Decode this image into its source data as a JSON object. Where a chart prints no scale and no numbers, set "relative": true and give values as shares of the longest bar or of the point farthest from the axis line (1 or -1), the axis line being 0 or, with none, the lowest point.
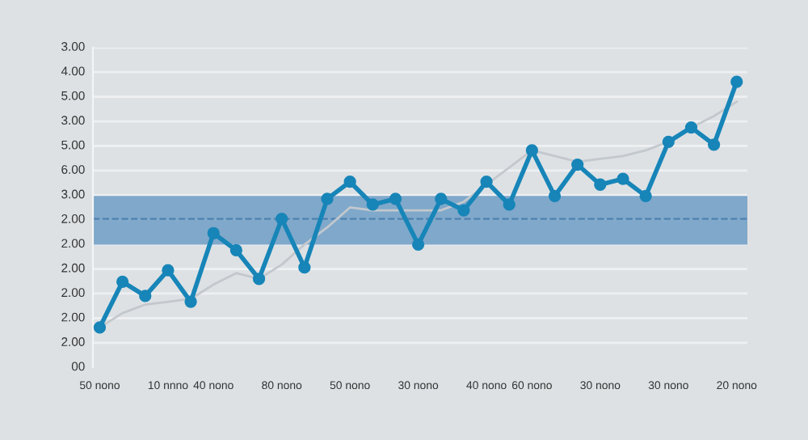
{
  "chart_data": {
    "type": "line",
    "relative": true,
    "categories": [
      "50 nono",
      null,
      null,
      "10 nnno",
      null,
      "40 nono",
      null,
      null,
      "80 nono",
      null,
      null,
      "50 nono",
      null,
      null,
      "30 nono",
      null,
      null,
      "40 nono",
      null,
      "60 nono",
      null,
      null,
      "30 nono",
      null,
      null,
      "30 nono",
      null,
      null,
      "20 nono"
    ],
    "series": [
      {
        "color": "#c3c8cd",
        "marker": "none",
        "values": [
          0.14,
          0.19,
          0.22,
          0.23,
          0.24,
          0.29,
          0.33,
          0.31,
          0.36,
          0.43,
          0.49,
          0.56,
          0.55,
          0.55,
          0.55,
          0.55,
          0.58,
          0.64,
          0.7,
          0.76,
          0.74,
          0.72,
          0.73,
          0.74,
          0.76,
          0.79,
          0.84,
          0.88,
          0.93
        ]
      },
      {
        "color": "#1785b8",
        "marker": "circle",
        "values": [
          0.14,
          0.3,
          0.25,
          0.34,
          0.23,
          0.47,
          0.41,
          0.31,
          0.52,
          0.35,
          0.59,
          0.65,
          0.57,
          0.59,
          0.43,
          0.59,
          0.55,
          0.65,
          0.57,
          0.76,
          0.6,
          0.71,
          0.64,
          0.66,
          0.6,
          0.79,
          0.84,
          0.78,
          1
        ]
      }
    ],
    "annotations": [
      "00",
      "2.00",
      "2.00",
      "2.00",
      "2.00",
      "2.00",
      "2.00",
      "3.00",
      "6.00",
      "5.00",
      "3.00",
      "5.00",
      "4.00",
      "3.00"
    ],
    "bands": [
      {
        "axis": "y",
        "from": 0.43,
        "to": 0.6,
        "color": "#6f9ec6"
      }
    ],
    "ref_lines": [
      {
        "axis": "y",
        "value": 0.52,
        "color": "#4f82b0",
        "line_style": "dashed"
      }
    ],
    "grid": "y",
    "line_style": "solid"
  }
}
